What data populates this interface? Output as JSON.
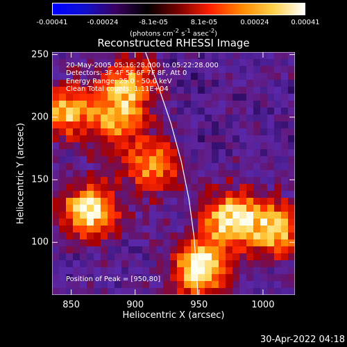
{
  "colorbar": {
    "ticks": [
      "-0.00041",
      "-0.00024",
      "-8.1e-05",
      "8.1e-05",
      "0.00024",
      "0.00041"
    ],
    "units_html": "(photons cm<sup>-2</sup> s<sup>-1</sup> asec<sup>-2</sup>)",
    "colors": [
      "#0000ff",
      "#1010d0",
      "#3a0060",
      "#000000",
      "#7a0000",
      "#ff2000",
      "#ff8800",
      "#ffd04a",
      "#ffffff"
    ]
  },
  "header": {
    "title": "Reconstructed RHESSI Image",
    "info": [
      "20-May-2005 05:16:28.000 to 05:22:28.000",
      "Detectors: 3F 4F 5F 6F 7F 8F, Att 0",
      "Energy Range: 25.0 - 50.0 keV",
      "Clean    Total counts: 1.11E+04"
    ],
    "peak_text": "Position of Peak = [950,80]"
  },
  "footer": {
    "timestamp": "30-Apr-2022 04:18"
  },
  "chart_data": {
    "type": "heatmap",
    "title": "Reconstructed RHESSI Image",
    "xlabel": "Heliocentric X (arcsec)",
    "ylabel": "Heliocentric Y (arcsec)",
    "xlim": [
      835,
      1025
    ],
    "ylim": [
      58,
      252
    ],
    "xticks": [
      850,
      900,
      950,
      1000
    ],
    "yticks": [
      100,
      150,
      200,
      250
    ],
    "grid": false,
    "colorbar_range": [
      -0.00041,
      0.00041
    ],
    "limb_curve": {
      "x": [
        908,
        918,
        928,
        936,
        942,
        946,
        948,
        949
      ],
      "y": [
        252,
        225,
        195,
        165,
        135,
        105,
        78,
        58
      ]
    },
    "peak_position": [
      950,
      80
    ],
    "bright_regions": [
      {
        "x": 865,
        "y": 125,
        "level": 0.95
      },
      {
        "x": 950,
        "y": 80,
        "level": 1.0
      },
      {
        "x": 975,
        "y": 120,
        "level": 0.85
      },
      {
        "x": 1010,
        "y": 110,
        "level": 0.8
      },
      {
        "x": 845,
        "y": 205,
        "level": 0.75
      },
      {
        "x": 895,
        "y": 225,
        "level": 0.7
      },
      {
        "x": 915,
        "y": 160,
        "level": 0.7
      },
      {
        "x": 885,
        "y": 195,
        "level": 0.6
      }
    ]
  }
}
